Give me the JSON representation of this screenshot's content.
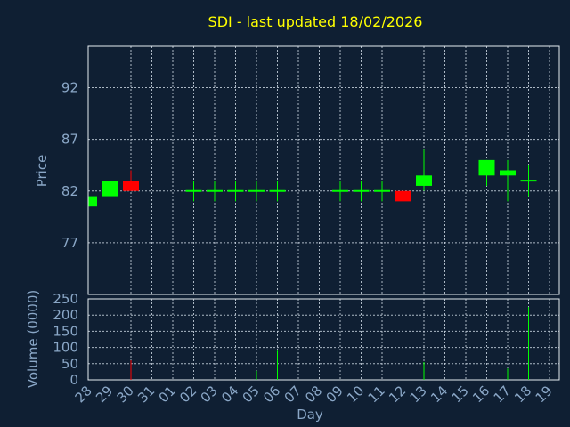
{
  "chart_data": {
    "type": "candlestick",
    "title": "SDI - last updated 18/02/2026",
    "price_panel": {
      "ylabel": "Price",
      "ylim": [
        72,
        96
      ],
      "yticks": [
        77,
        82,
        87,
        92
      ],
      "grid": true
    },
    "volume_panel": {
      "ylabel": "Volume (0000)",
      "ylim": [
        0,
        250
      ],
      "yticks": [
        0,
        50,
        100,
        150,
        200,
        250
      ],
      "grid": true
    },
    "xlabel": "Day",
    "x_ticks": [
      "28",
      "29",
      "30",
      "31",
      "01",
      "02",
      "03",
      "04",
      "05",
      "06",
      "07",
      "08",
      "09",
      "10",
      "11",
      "12",
      "13",
      "14",
      "15",
      "16",
      "17",
      "18",
      "19"
    ],
    "colors": {
      "up": "#00ff00",
      "down": "#ff0000",
      "background": "#0f1f33",
      "title": "#ffff00",
      "axis_text": "#8aa7c7"
    },
    "candles": [
      {
        "day": "28",
        "open": 80.5,
        "high": 81.5,
        "low": 80.5,
        "close": 81.5,
        "volume": 0
      },
      {
        "day": "29",
        "open": 81.5,
        "high": 85.0,
        "low": 80.0,
        "close": 83.0,
        "volume": 25
      },
      {
        "day": "30",
        "open": 83.0,
        "high": 84.0,
        "low": 82.0,
        "close": 82.0,
        "volume": 60
      },
      {
        "day": "02",
        "open": 82.0,
        "high": 83.0,
        "low": 81.0,
        "close": 82.0,
        "volume": 0
      },
      {
        "day": "03",
        "open": 82.0,
        "high": 83.0,
        "low": 81.0,
        "close": 82.0,
        "volume": 0
      },
      {
        "day": "04",
        "open": 82.0,
        "high": 83.0,
        "low": 81.0,
        "close": 82.0,
        "volume": 0
      },
      {
        "day": "05",
        "open": 82.0,
        "high": 83.0,
        "low": 81.0,
        "close": 82.0,
        "volume": 28
      },
      {
        "day": "06",
        "open": 82.0,
        "high": 83.0,
        "low": 81.0,
        "close": 82.0,
        "volume": 90
      },
      {
        "day": "09",
        "open": 82.0,
        "high": 83.0,
        "low": 81.0,
        "close": 82.0,
        "volume": 0
      },
      {
        "day": "10",
        "open": 82.0,
        "high": 83.0,
        "low": 81.0,
        "close": 82.0,
        "volume": 0
      },
      {
        "day": "11",
        "open": 82.0,
        "high": 83.0,
        "low": 81.0,
        "close": 82.0,
        "volume": 0
      },
      {
        "day": "12",
        "open": 82.0,
        "high": 82.0,
        "low": 81.0,
        "close": 81.0,
        "volume": 0
      },
      {
        "day": "13",
        "open": 82.5,
        "high": 86.0,
        "low": 82.0,
        "close": 83.5,
        "volume": 55
      },
      {
        "day": "16",
        "open": 83.5,
        "high": 85.0,
        "low": 82.5,
        "close": 85.0,
        "volume": 0
      },
      {
        "day": "17",
        "open": 83.5,
        "high": 85.0,
        "low": 81.0,
        "close": 84.0,
        "volume": 35
      },
      {
        "day": "18",
        "open": 83.0,
        "high": 84.5,
        "low": 81.5,
        "close": 83.0,
        "volume": 225
      }
    ]
  }
}
